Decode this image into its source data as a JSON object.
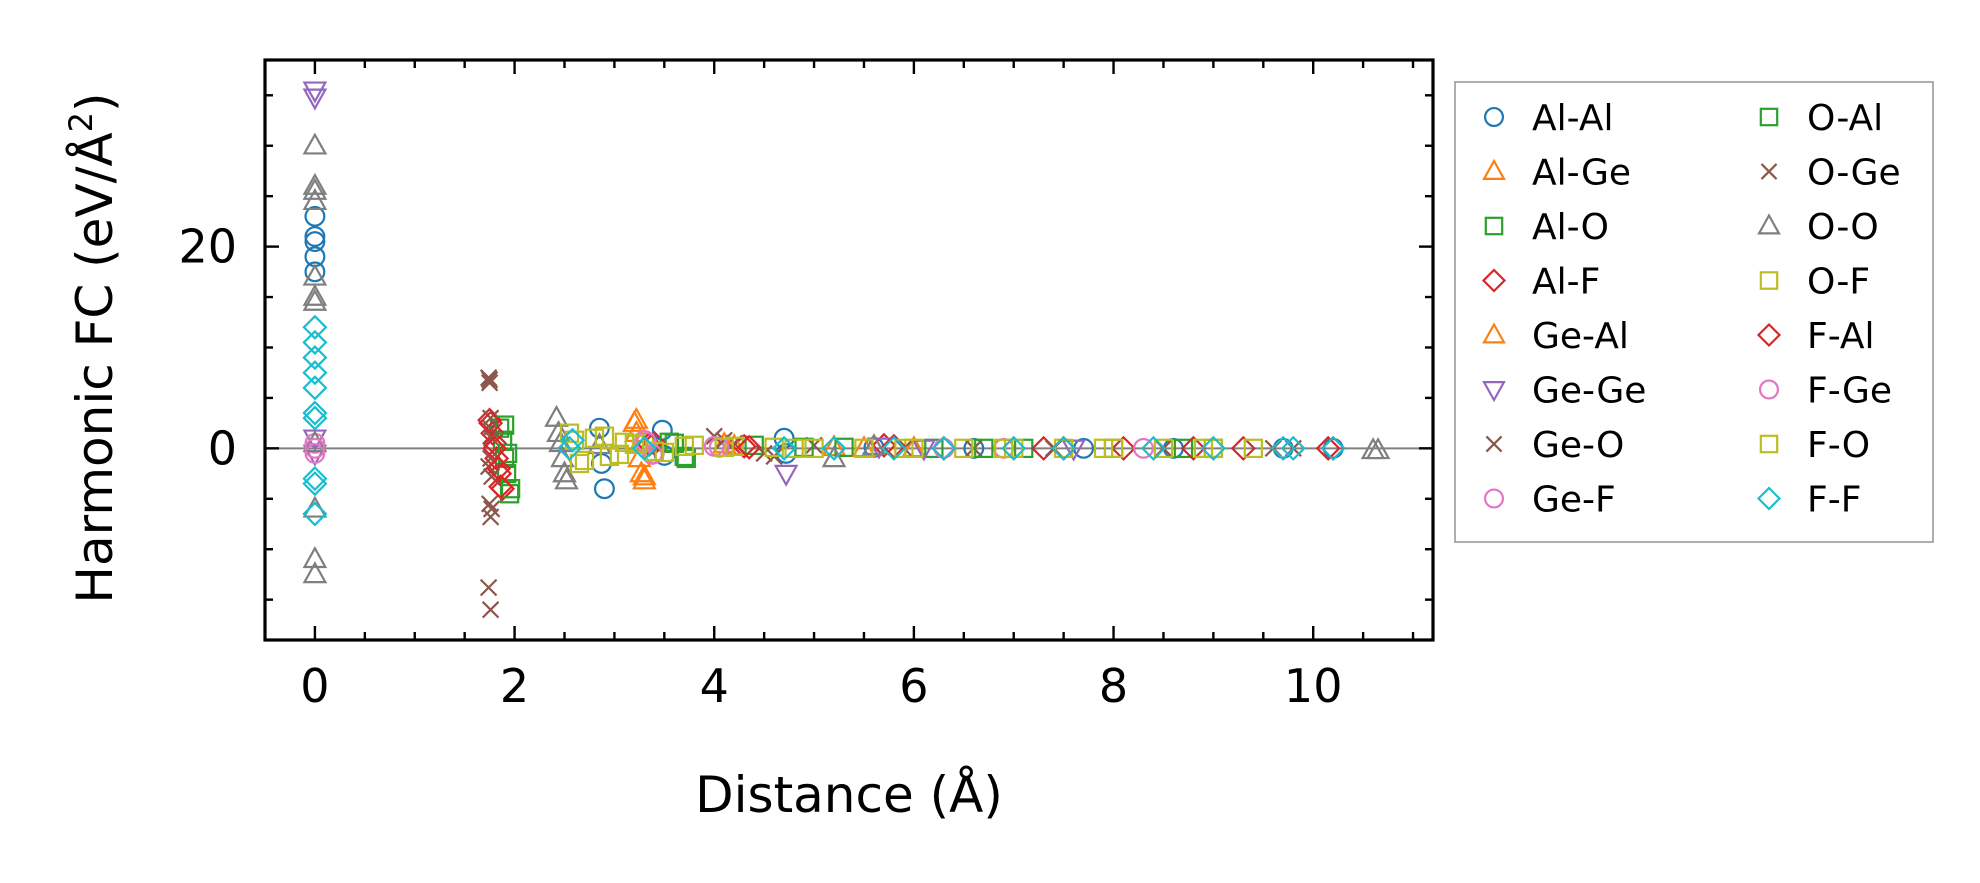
{
  "chart_data": {
    "type": "scatter",
    "title": "",
    "xlabel": "Distance (Å)",
    "ylabel_main": "Harmonic FC (eV/Å",
    "ylabel_sup": "2",
    "ylabel_close": ")",
    "xlim": [
      -0.5,
      11.2
    ],
    "ylim": [
      -19,
      38.5
    ],
    "xticks": [
      0,
      2,
      4,
      6,
      8,
      10
    ],
    "xtick_labels": [
      "0",
      "2",
      "4",
      "6",
      "8",
      "10"
    ],
    "yticks": [
      0,
      20
    ],
    "ytick_labels": [
      "0",
      "20"
    ],
    "grid": false,
    "zero_line": true,
    "legend_position": "outside-right",
    "series": [
      {
        "name": "Al-Al",
        "marker": "circle",
        "color": "#1f77b4",
        "x": [
          0,
          0,
          0,
          0,
          0,
          2.85,
          2.87,
          2.9,
          3.48,
          3.5,
          4.7,
          4.72,
          5.6,
          6.6,
          7.7,
          8.6,
          9.7,
          10.2
        ],
        "y": [
          23,
          21,
          20.5,
          19,
          17.5,
          2,
          -1.5,
          -4,
          1.8,
          -0.7,
          1,
          -0.5,
          0.1,
          0,
          0,
          0,
          0,
          0
        ]
      },
      {
        "name": "Al-Ge",
        "marker": "triangle-up",
        "color": "#ff7f0e",
        "x": [
          3.2,
          3.22,
          3.25,
          3.27,
          3.3,
          4.1,
          5.2,
          6.0
        ],
        "y": [
          2.5,
          1.5,
          -1,
          -2.5,
          -3.2,
          0.4,
          0.1,
          0
        ]
      },
      {
        "name": "Al-O",
        "marker": "square",
        "color": "#2ca02c",
        "x": [
          1.85,
          1.88,
          1.9,
          1.92,
          1.95,
          3.6,
          3.7,
          4.4,
          5.3,
          6.2,
          7.1,
          8.0,
          9.0
        ],
        "y": [
          2,
          0.8,
          -1,
          -2.5,
          -4.5,
          0.5,
          -0.8,
          0.3,
          0.1,
          0,
          0,
          0,
          0
        ]
      },
      {
        "name": "Al-F",
        "marker": "diamond",
        "color": "#d62728",
        "x": [
          1.75,
          1.78,
          1.8,
          1.82,
          1.85,
          1.88,
          3.4,
          4.3,
          5.7,
          6.3,
          7.3,
          8.1,
          9.3,
          10.2
        ],
        "y": [
          2.8,
          1.5,
          0.5,
          -1,
          -2.5,
          -4,
          0.5,
          0.2,
          0.3,
          0,
          0,
          0,
          0,
          0
        ]
      },
      {
        "name": "Ge-Al",
        "marker": "triangle-up",
        "color": "#ff7f0e",
        "x": [
          3.22,
          3.26,
          3.3,
          4.2,
          5.5
        ],
        "y": [
          2.8,
          0.5,
          -2.8,
          0.2,
          0
        ]
      },
      {
        "name": "Ge-Ge",
        "marker": "triangle-down",
        "color": "#9467bd",
        "x": [
          0,
          0,
          0,
          0,
          4.72,
          5.65,
          6.1,
          7.6
        ],
        "y": [
          35.5,
          34.8,
          1,
          -0.5,
          -2.5,
          0.2,
          0,
          0
        ]
      },
      {
        "name": "Ge-O",
        "marker": "x",
        "color": "#8c564b",
        "x": [
          1.74,
          1.75,
          1.76,
          1.77,
          1.76,
          1.77,
          1.75,
          1.76,
          1.74,
          1.76,
          4.0,
          4.2,
          4.6,
          5.0,
          6.6,
          7.4,
          8.5,
          9.6
        ],
        "y": [
          7,
          6.5,
          3,
          1,
          -1,
          -2.8,
          -5.5,
          -6.8,
          -13.8,
          -16,
          1.2,
          0.5,
          -0.8,
          0.3,
          0,
          0,
          0,
          0
        ]
      },
      {
        "name": "Ge-F",
        "marker": "circle",
        "color": "#e377c2",
        "x": [
          0,
          0,
          3.3,
          3.4,
          4.0,
          6.3,
          8.3
        ],
        "y": [
          0.5,
          -0.5,
          0.8,
          -0.5,
          0.2,
          0,
          0
        ]
      },
      {
        "name": "O-Al",
        "marker": "square",
        "color": "#2ca02c",
        "x": [
          1.9,
          1.93,
          1.96,
          3.55,
          3.72,
          4.9,
          6.7,
          8.7
        ],
        "y": [
          2.3,
          -0.5,
          -4,
          0.6,
          -1,
          0.1,
          0,
          0
        ]
      },
      {
        "name": "O-Ge",
        "marker": "x",
        "color": "#8c564b",
        "x": [
          1.75,
          1.76,
          1.74,
          1.77,
          4.1,
          4.5,
          5.9,
          9.8
        ],
        "y": [
          6.8,
          2,
          -1.8,
          -6,
          0.8,
          -0.5,
          0,
          0
        ]
      },
      {
        "name": "O-O",
        "marker": "triangle-up",
        "color": "#7f7f7f",
        "x": [
          0,
          0,
          0,
          0,
          0,
          0,
          0,
          0,
          0,
          0,
          0,
          2.42,
          2.44,
          2.46,
          2.48,
          2.5,
          2.52,
          2.85,
          5.2,
          5.6,
          10.6,
          10.65
        ],
        "y": [
          30,
          26,
          25.5,
          24.5,
          17,
          15,
          14.5,
          0.5,
          -6,
          -11,
          -12.5,
          3,
          1.5,
          0.5,
          -1,
          -2.5,
          -3.2,
          0.3,
          -1,
          0.2,
          -0.2,
          -0.2
        ]
      },
      {
        "name": "O-F",
        "marker": "square",
        "color": "#bcbd22",
        "x": [
          2.55,
          2.65,
          2.8,
          2.95,
          3.1,
          3.3,
          3.5,
          3.8,
          4.2,
          4.6,
          5.0,
          5.5,
          6.0,
          6.5,
          7.0,
          7.5,
          8.0,
          8.5,
          9.0,
          9.4
        ],
        "y": [
          1.5,
          -1.5,
          1,
          -0.8,
          0.6,
          0.5,
          -0.4,
          0.3,
          0.2,
          0.1,
          0,
          0,
          0,
          0,
          0,
          0,
          0,
          0,
          0,
          0
        ]
      },
      {
        "name": "F-Al",
        "marker": "diamond",
        "color": "#d62728",
        "x": [
          1.76,
          1.8,
          1.84,
          1.86,
          3.35,
          4.35,
          5.8,
          7.5,
          8.8,
          10.15
        ],
        "y": [
          2.5,
          0,
          -2,
          -3.8,
          0.4,
          0.1,
          0.2,
          0,
          0,
          0
        ]
      },
      {
        "name": "F-Ge",
        "marker": "circle",
        "color": "#e377c2",
        "x": [
          0,
          3.32,
          3.38,
          4.05,
          6.9
        ],
        "y": [
          0,
          0.6,
          -0.6,
          0.1,
          0
        ]
      },
      {
        "name": "F-O",
        "marker": "square",
        "color": "#bcbd22",
        "x": [
          2.6,
          2.7,
          2.9,
          3.05,
          3.2,
          3.4,
          3.7,
          4.1,
          4.8,
          5.9,
          6.9,
          7.9,
          8.9
        ],
        "y": [
          0.8,
          -1.2,
          1.2,
          -0.6,
          0.4,
          -0.3,
          0.2,
          0.1,
          0,
          0,
          0,
          0,
          0
        ]
      },
      {
        "name": "F-F",
        "marker": "diamond",
        "color": "#17becf",
        "x": [
          0,
          0,
          0,
          0,
          0,
          0,
          0,
          0,
          0,
          0,
          2.55,
          2.58,
          3.3,
          4.7,
          5.2,
          5.8,
          6.3,
          7.0,
          7.5,
          8.4,
          9.0,
          9.7,
          9.8,
          10.2
        ],
        "y": [
          12,
          10.5,
          9,
          7.5,
          6,
          3.5,
          3,
          -3,
          -3.5,
          -6.5,
          0,
          0.8,
          0,
          0,
          0,
          0,
          0,
          0,
          0,
          0,
          0,
          0,
          0,
          0
        ]
      }
    ]
  }
}
